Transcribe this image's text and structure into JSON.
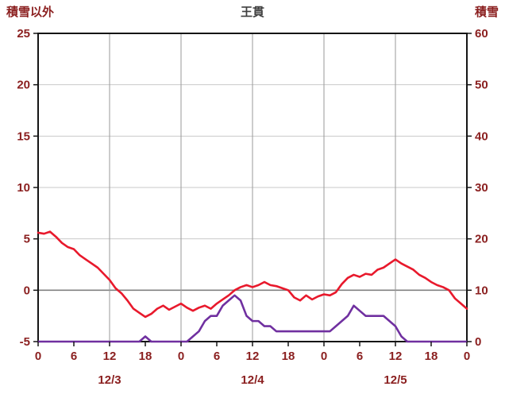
{
  "header": {
    "left_axis_label": "積雪以外",
    "title": "王貫",
    "right_axis_label": "積雪"
  },
  "chart_data": {
    "type": "line",
    "title": "王貫",
    "left_axis": {
      "label": "積雪以外",
      "min": -5,
      "max": 25,
      "ticks": [
        -5,
        0,
        5,
        10,
        15,
        20,
        25
      ]
    },
    "right_axis": {
      "label": "積雪",
      "min": 0,
      "max": 60,
      "ticks": [
        0,
        10,
        20,
        30,
        40,
        50,
        60
      ]
    },
    "x_axis": {
      "min_hour": 0,
      "max_hour": 72,
      "tick_hours": [
        0,
        6,
        12,
        18,
        24,
        30,
        36,
        42,
        48,
        54,
        60,
        66,
        72
      ],
      "tick_labels": [
        "0",
        "6",
        "12",
        "18",
        "0",
        "6",
        "12",
        "18",
        "0",
        "6",
        "12",
        "18",
        "0"
      ],
      "grid_hours": [
        12,
        24,
        36,
        48,
        60
      ],
      "date_labels": [
        {
          "label": "12/3",
          "hour": 12
        },
        {
          "label": "12/4",
          "hour": 36
        },
        {
          "label": "12/5",
          "hour": 60
        }
      ]
    },
    "series": [
      {
        "name": "積雪以外",
        "axis": "left",
        "color": "#e8192c",
        "values": [
          5.6,
          5.5,
          5.7,
          5.2,
          4.6,
          4.2,
          4.0,
          3.4,
          3.0,
          2.6,
          2.2,
          1.6,
          1.0,
          0.2,
          -0.3,
          -1.0,
          -1.8,
          -2.2,
          -2.6,
          -2.3,
          -1.8,
          -1.5,
          -1.9,
          -1.6,
          -1.3,
          -1.7,
          -2.0,
          -1.7,
          -1.5,
          -1.8,
          -1.3,
          -0.9,
          -0.5,
          0.0,
          0.3,
          0.5,
          0.3,
          0.5,
          0.8,
          0.5,
          0.4,
          0.2,
          0.0,
          -0.7,
          -1.0,
          -0.5,
          -0.9,
          -0.6,
          -0.4,
          -0.5,
          -0.2,
          0.6,
          1.2,
          1.5,
          1.3,
          1.6,
          1.5,
          2.0,
          2.2,
          2.6,
          3.0,
          2.6,
          2.3,
          2.0,
          1.5,
          1.2,
          0.8,
          0.5,
          0.3,
          0.0,
          -0.8,
          -1.3,
          -1.8
        ]
      },
      {
        "name": "積雪",
        "axis": "right",
        "color": "#7030a0",
        "values": [
          0,
          0,
          0,
          0,
          0,
          0,
          0,
          0,
          0,
          0,
          0,
          0,
          0,
          0,
          0,
          0,
          0,
          0,
          1,
          0,
          0,
          0,
          0,
          0,
          0,
          0,
          1,
          2,
          4,
          5,
          5,
          7,
          8,
          9,
          8,
          5,
          4,
          4,
          3,
          3,
          2,
          2,
          2,
          2,
          2,
          2,
          2,
          2,
          2,
          2,
          3,
          4,
          5,
          7,
          6,
          5,
          5,
          5,
          5,
          4,
          3,
          1,
          0,
          0,
          0,
          0,
          0,
          0,
          0,
          0,
          0,
          0,
          0
        ]
      }
    ],
    "colors": {
      "label": "#8b2020",
      "title": "#404040",
      "grid": "#c9c9c9",
      "zero_line": "#808080",
      "vertical_grid": "#9a9a9a",
      "border": "#151515",
      "background": "#ffffff"
    }
  }
}
